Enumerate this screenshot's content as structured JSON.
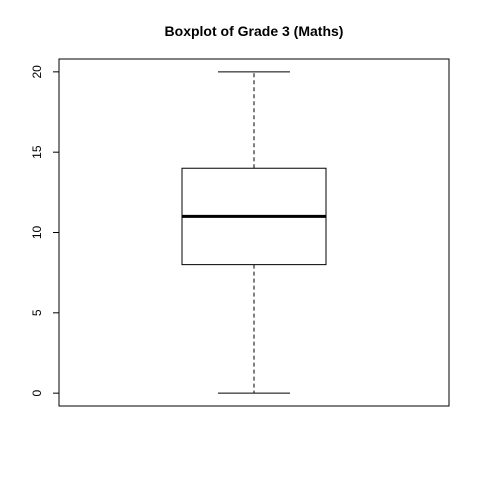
{
  "chart_data": {
    "type": "boxplot",
    "title": "Boxplot of Grade 3 (Maths)",
    "xlabel": "",
    "ylabel": "",
    "ylim": [
      -0.8,
      20.8
    ],
    "yticks": [
      0,
      5,
      10,
      15,
      20
    ],
    "ytick_labels": [
      "0",
      "5",
      "10",
      "15",
      "20"
    ],
    "grid": false,
    "boxes": [
      {
        "min": 0,
        "q1": 8,
        "median": 11,
        "q3": 14,
        "max": 20
      }
    ]
  }
}
